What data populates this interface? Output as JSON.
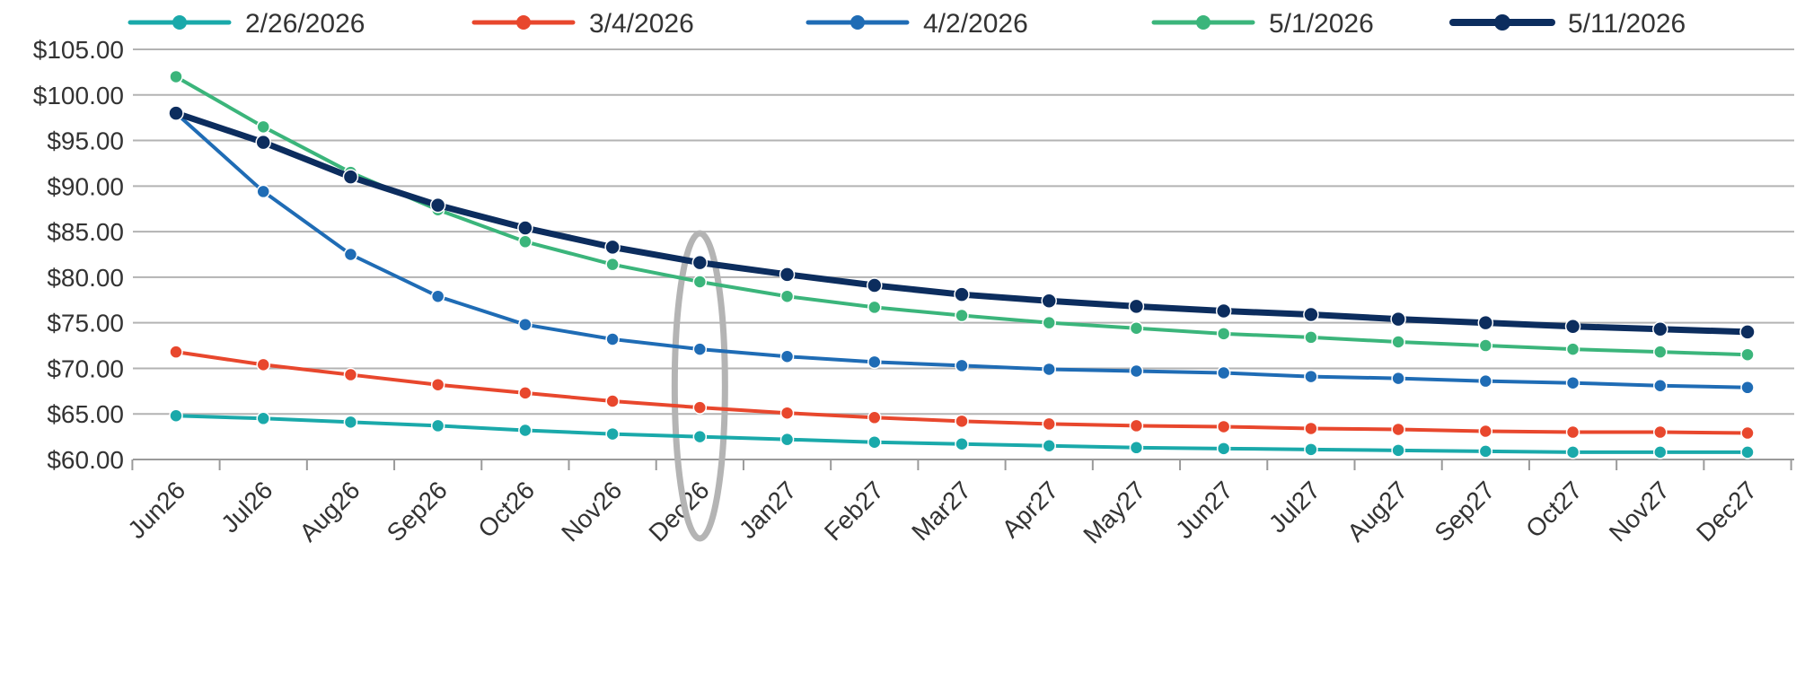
{
  "chart_data": {
    "type": "line",
    "categories": [
      "Jun26",
      "Jul26",
      "Aug26",
      "Sep26",
      "Oct26",
      "Nov26",
      "Dec26",
      "Jan27",
      "Feb27",
      "Mar27",
      "Apr27",
      "May27",
      "Jun27",
      "Jul27",
      "Aug27",
      "Sep27",
      "Oct27",
      "Nov27",
      "Dec27"
    ],
    "y_ticks": [
      "$60.00",
      "$65.00",
      "$70.00",
      "$75.00",
      "$80.00",
      "$85.00",
      "$90.00",
      "$95.00",
      "$100.00",
      "$105.00"
    ],
    "ylim": [
      60,
      105
    ],
    "grid": true,
    "legend_position": "top",
    "highlight_category": "Dec26",
    "series": [
      {
        "name": "2/26/2026",
        "color": "#1aa9aa",
        "values": [
          64.8,
          64.5,
          64.1,
          63.7,
          63.2,
          62.8,
          62.5,
          62.2,
          61.9,
          61.7,
          61.5,
          61.3,
          61.2,
          61.1,
          61.0,
          60.9,
          60.8,
          60.8,
          60.8
        ]
      },
      {
        "name": "3/4/2026",
        "color": "#e8472d",
        "values": [
          71.8,
          70.4,
          69.3,
          68.2,
          67.3,
          66.4,
          65.7,
          65.1,
          64.6,
          64.2,
          63.9,
          63.7,
          63.6,
          63.4,
          63.3,
          63.1,
          63.0,
          63.0,
          62.9
        ]
      },
      {
        "name": "4/2/2026",
        "color": "#1f6cb5",
        "values": [
          98.0,
          89.4,
          82.5,
          77.9,
          74.8,
          73.2,
          72.1,
          71.3,
          70.7,
          70.3,
          69.9,
          69.7,
          69.5,
          69.1,
          68.9,
          68.6,
          68.4,
          68.1,
          67.9
        ]
      },
      {
        "name": "5/1/2026",
        "color": "#3bb57b",
        "values": [
          102.0,
          96.5,
          91.5,
          87.4,
          83.9,
          81.4,
          79.5,
          77.9,
          76.7,
          75.8,
          75.0,
          74.4,
          73.8,
          73.4,
          72.9,
          72.5,
          72.1,
          71.8,
          71.5
        ]
      },
      {
        "name": "5/11/2026",
        "color": "#0c2d5e",
        "values": [
          98.0,
          94.8,
          91.0,
          87.9,
          85.4,
          83.3,
          81.6,
          80.3,
          79.1,
          78.1,
          77.4,
          76.8,
          76.3,
          75.9,
          75.4,
          75.0,
          74.6,
          74.3,
          74.0
        ]
      }
    ]
  }
}
